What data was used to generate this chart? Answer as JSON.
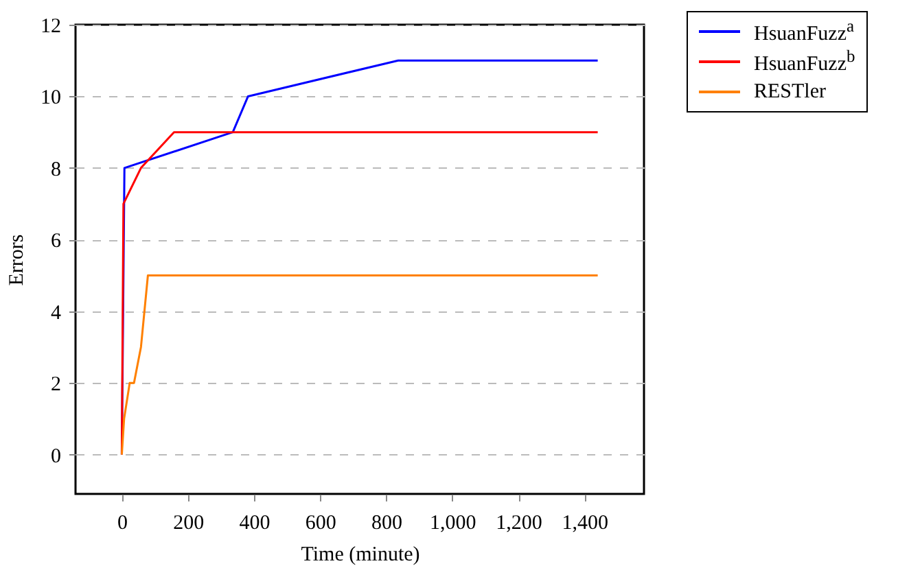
{
  "chart_data": {
    "type": "line",
    "xlabel": "Time (minute)",
    "ylabel": "Errors",
    "xlim": [
      -140,
      1580
    ],
    "ylim": [
      -1.1,
      12
    ],
    "xticks": [
      0,
      200,
      400,
      600,
      800,
      {
        "value": 1000,
        "label": "1,000"
      },
      {
        "value": 1200,
        "label": "1,200"
      },
      {
        "value": 1400,
        "label": "1,400"
      }
    ],
    "yticks": [
      0,
      2,
      4,
      6,
      8,
      10,
      12
    ],
    "grid": "y",
    "legend": "top right",
    "marker": "none",
    "line_style": "solid",
    "series": [
      {
        "name": "HsuanFuzz$^{a}$",
        "color": "#0000ff",
        "x": [
          0,
          8,
          336,
          382,
          836,
          1440
        ],
        "values": [
          0,
          8,
          9,
          10,
          11,
          11
        ]
      },
      {
        "name": "HsuanFuzz$^{b}$",
        "color": "#ff0000",
        "x": [
          0,
          5,
          58,
          158,
          1440
        ],
        "values": [
          0,
          7,
          8,
          9,
          9
        ]
      },
      {
        "name": "RESTler",
        "color": "#ff8000",
        "x": [
          0,
          7,
          24,
          37,
          58,
          79,
          1440
        ],
        "values": [
          0,
          1,
          2,
          2,
          3,
          5,
          5
        ]
      }
    ]
  }
}
